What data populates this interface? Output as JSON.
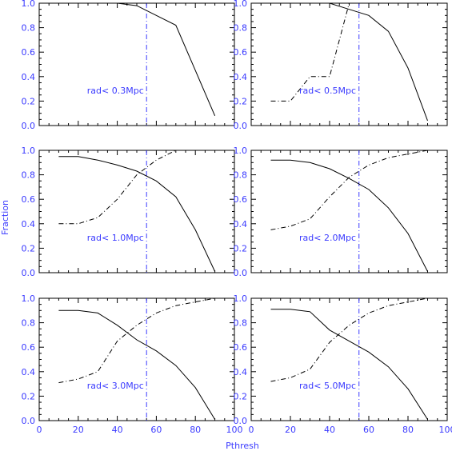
{
  "chart_data": {
    "type": "line",
    "xlabel": "Pthresh",
    "ylabel": "Fraction",
    "xlim": [
      0,
      100
    ],
    "ylim": [
      0,
      1
    ],
    "xticks": [
      0,
      20,
      40,
      60,
      80,
      100
    ],
    "yticks": [
      0.0,
      0.2,
      0.4,
      0.6,
      0.8,
      1.0
    ],
    "xtick_labels": [
      "0",
      "20",
      "40",
      "60",
      "80",
      "100"
    ],
    "ytick_labels": [
      "0.0",
      "0.2",
      "0.4",
      "0.6",
      "0.8",
      "1.0"
    ],
    "threshold_x": 55,
    "panels": [
      {
        "label": "rad< 0.3Mpc",
        "solid": {
          "x": [
            10,
            20,
            30,
            40,
            50,
            60,
            70,
            80,
            90
          ],
          "y": [
            1.0,
            1.0,
            1.0,
            1.0,
            0.98,
            0.9,
            0.82,
            0.45,
            0.08
          ]
        },
        "dashdot": {
          "x": [
            10,
            20,
            30,
            40,
            50,
            60,
            70,
            80,
            90
          ],
          "y": [
            1.0,
            1.0,
            1.0,
            1.0,
            1.0,
            1.0,
            1.0,
            1.0,
            1.0
          ]
        }
      },
      {
        "label": "rad< 0.5Mpc",
        "solid": {
          "x": [
            10,
            20,
            30,
            40,
            50,
            60,
            70,
            80,
            90
          ],
          "y": [
            1.0,
            1.0,
            1.0,
            1.0,
            0.95,
            0.9,
            0.77,
            0.47,
            0.04
          ]
        },
        "dashdot": {
          "x": [
            10,
            20,
            30,
            40,
            50,
            60,
            70,
            80,
            90
          ],
          "y": [
            0.2,
            0.2,
            0.4,
            0.4,
            1.0,
            1.0,
            1.0,
            1.0,
            1.0
          ]
        }
      },
      {
        "label": "rad< 1.0Mpc",
        "solid": {
          "x": [
            10,
            20,
            30,
            40,
            50,
            60,
            70,
            80,
            90
          ],
          "y": [
            0.95,
            0.95,
            0.92,
            0.88,
            0.83,
            0.75,
            0.62,
            0.35,
            0.01
          ]
        },
        "dashdot": {
          "x": [
            10,
            20,
            30,
            40,
            50,
            60,
            70,
            80,
            90
          ],
          "y": [
            0.4,
            0.4,
            0.45,
            0.6,
            0.8,
            0.92,
            1.0,
            1.0,
            1.0
          ]
        }
      },
      {
        "label": "rad< 2.0Mpc",
        "solid": {
          "x": [
            10,
            20,
            30,
            40,
            50,
            60,
            70,
            80,
            90
          ],
          "y": [
            0.92,
            0.92,
            0.9,
            0.85,
            0.77,
            0.68,
            0.53,
            0.32,
            0.01
          ]
        },
        "dashdot": {
          "x": [
            10,
            20,
            30,
            40,
            50,
            60,
            70,
            80,
            90
          ],
          "y": [
            0.35,
            0.38,
            0.44,
            0.62,
            0.78,
            0.88,
            0.94,
            0.97,
            1.0
          ]
        }
      },
      {
        "label": "rad< 3.0Mpc",
        "solid": {
          "x": [
            10,
            20,
            30,
            40,
            50,
            60,
            70,
            80,
            90
          ],
          "y": [
            0.9,
            0.9,
            0.88,
            0.78,
            0.66,
            0.57,
            0.45,
            0.27,
            0.01
          ]
        },
        "dashdot": {
          "x": [
            10,
            20,
            30,
            40,
            50,
            60,
            70,
            80,
            90
          ],
          "y": [
            0.31,
            0.34,
            0.4,
            0.65,
            0.78,
            0.88,
            0.94,
            0.97,
            1.0
          ]
        }
      },
      {
        "label": "rad< 5.0Mpc",
        "solid": {
          "x": [
            10,
            20,
            30,
            40,
            50,
            60,
            70,
            80,
            90
          ],
          "y": [
            0.91,
            0.91,
            0.89,
            0.74,
            0.65,
            0.56,
            0.44,
            0.26,
            0.01
          ]
        },
        "dashdot": {
          "x": [
            10,
            20,
            30,
            40,
            50,
            60,
            70,
            80,
            90
          ],
          "y": [
            0.32,
            0.35,
            0.42,
            0.64,
            0.78,
            0.88,
            0.94,
            0.97,
            1.0
          ]
        }
      }
    ],
    "colors": {
      "axis_text": "#3a3aff",
      "lines": "#000000",
      "threshold": "#3a3aff"
    }
  }
}
